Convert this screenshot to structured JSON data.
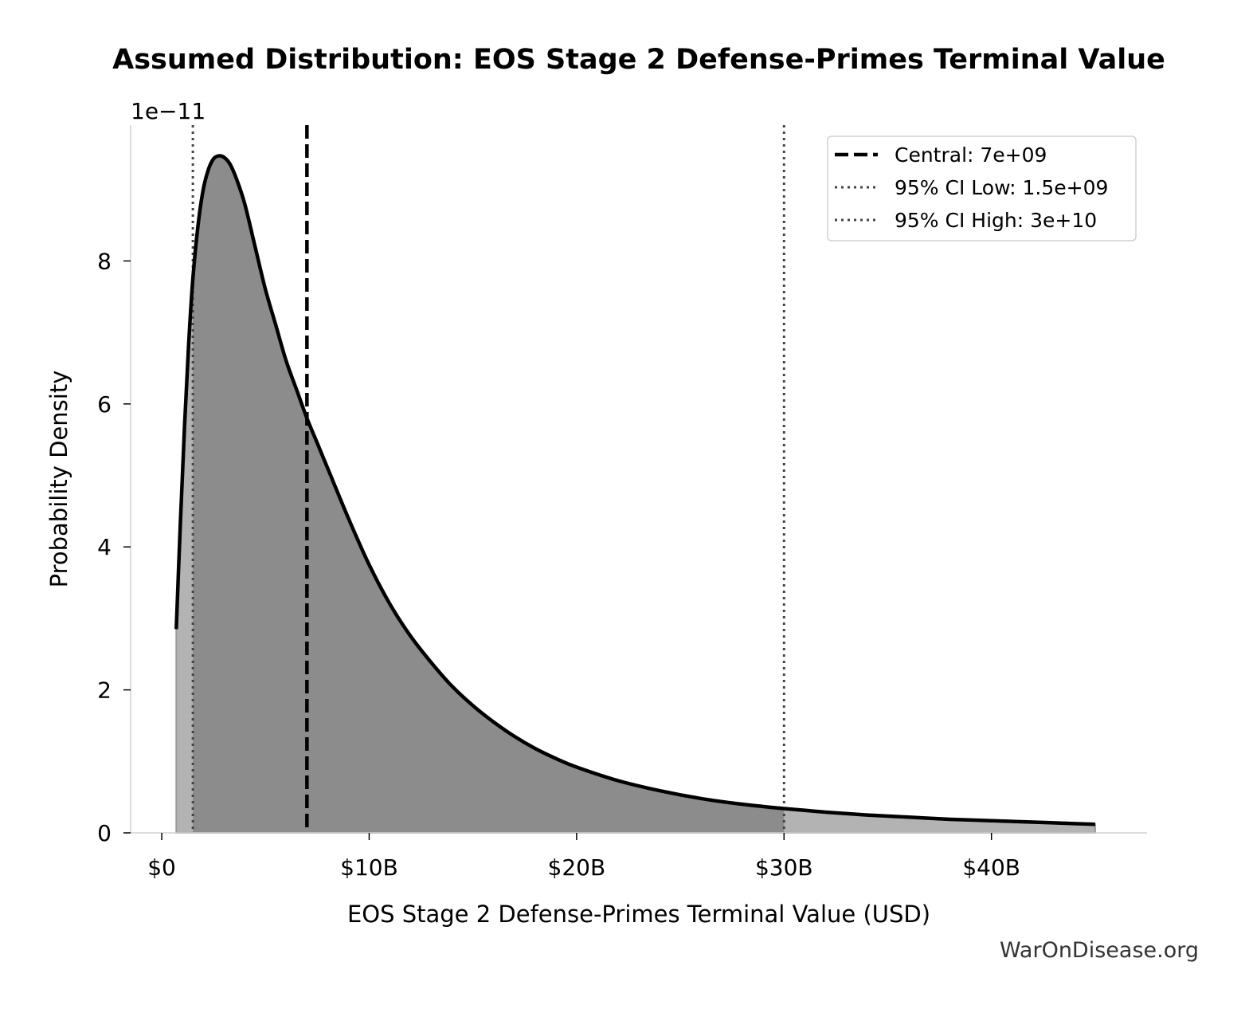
{
  "chart_data": {
    "type": "area",
    "title": "Assumed Distribution: EOS Stage 2 Defense-Primes Terminal Value",
    "xlabel": "EOS Stage 2 Defense-Primes Terminal Value (USD)",
    "ylabel": "Probability Density",
    "y_offset_label": "1e−11",
    "xlim": [
      -1.5,
      47.5
    ],
    "ylim": [
      0,
      9.9
    ],
    "x_ticks": [
      {
        "value": 0,
        "label": "$0"
      },
      {
        "value": 10,
        "label": "$10B"
      },
      {
        "value": 20,
        "label": "$20B"
      },
      {
        "value": 30,
        "label": "$30B"
      },
      {
        "value": 40,
        "label": "$40B"
      }
    ],
    "y_ticks": [
      {
        "value": 0,
        "label": "0"
      },
      {
        "value": 2,
        "label": "2"
      },
      {
        "value": 4,
        "label": "4"
      },
      {
        "value": 6,
        "label": "6"
      },
      {
        "value": 8,
        "label": "8"
      }
    ],
    "series": [
      {
        "name": "density",
        "x": [
          0.7,
          0.9,
          1.1,
          1.3,
          1.5,
          1.75,
          2.0,
          2.25,
          2.5,
          2.75,
          3.0,
          3.3,
          3.6,
          4.0,
          4.5,
          5.0,
          5.5,
          6.0,
          6.5,
          7.0,
          7.5,
          8.0,
          9.0,
          10.0,
          11.0,
          12.0,
          13.0,
          14.0,
          15.0,
          16.0,
          17.0,
          18.0,
          19.0,
          20.0,
          22.0,
          24.0,
          26.0,
          28.0,
          30.0,
          32.0,
          34.0,
          36.0,
          38.0,
          40.0,
          42.0,
          44.0,
          45.0
        ],
        "values": [
          2.85,
          4.35,
          5.7,
          6.85,
          7.75,
          8.5,
          9.0,
          9.28,
          9.43,
          9.47,
          9.45,
          9.35,
          9.15,
          8.8,
          8.2,
          7.6,
          7.1,
          6.6,
          6.2,
          5.8,
          5.45,
          5.1,
          4.4,
          3.75,
          3.2,
          2.75,
          2.38,
          2.05,
          1.78,
          1.55,
          1.35,
          1.18,
          1.04,
          0.92,
          0.73,
          0.59,
          0.48,
          0.4,
          0.34,
          0.29,
          0.25,
          0.22,
          0.19,
          0.17,
          0.15,
          0.13,
          0.12
        ]
      }
    ],
    "reference_lines": [
      {
        "name": "Central: 7e+09",
        "x": 7.0,
        "style": "dashed",
        "color": "#000000"
      },
      {
        "name": "95% CI Low: 1.5e+09",
        "x": 1.5,
        "style": "dotted",
        "color": "#444444"
      },
      {
        "name": "95% CI High: 3e+10",
        "x": 30.0,
        "style": "dotted",
        "color": "#444444"
      }
    ],
    "shaded_interval": [
      1.5,
      30.0
    ],
    "legend_position": "top-right",
    "grid": false,
    "colors": {
      "curve": "#000000",
      "fill_inner": "#8c8c8c",
      "fill_outer": "#b3b3b3",
      "axis": "#d0d0d0"
    }
  },
  "watermark": "WarOnDisease.org"
}
